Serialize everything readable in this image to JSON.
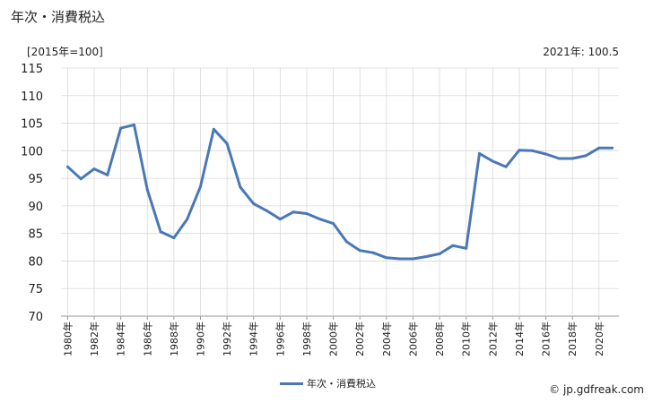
{
  "chart_data": {
    "type": "line",
    "title": "年次・消費税込",
    "unit_label": "[2015年=100]",
    "latest_note": "2021年: 100.5",
    "ylim": [
      70,
      115
    ],
    "yticks": [
      70,
      75,
      80,
      85,
      90,
      95,
      100,
      105,
      110,
      115
    ],
    "xlim": [
      1980,
      2021
    ],
    "xtick_labels": [
      "1980年",
      "1982年",
      "1984年",
      "1986年",
      "1988年",
      "1990年",
      "1992年",
      "1994年",
      "1996年",
      "1998年",
      "2000年",
      "2002年",
      "2004年",
      "2006年",
      "2008年",
      "2010年",
      "2012年",
      "2014年",
      "2016年",
      "2018年",
      "2020年"
    ],
    "xtick_years": [
      1980,
      1982,
      1984,
      1986,
      1988,
      1990,
      1992,
      1994,
      1996,
      1998,
      2000,
      2002,
      2004,
      2006,
      2008,
      2010,
      2012,
      2014,
      2016,
      2018,
      2020
    ],
    "grid": true,
    "legend_position": "bottom",
    "series": [
      {
        "name": "年次・消費税込",
        "color": "#4a78b6",
        "x": [
          1980,
          1981,
          1982,
          1983,
          1984,
          1985,
          1986,
          1987,
          1988,
          1989,
          1990,
          1991,
          1992,
          1993,
          1994,
          1995,
          1996,
          1997,
          1998,
          1999,
          2000,
          2001,
          2002,
          2003,
          2004,
          2005,
          2006,
          2007,
          2008,
          2009,
          2010,
          2011,
          2012,
          2013,
          2014,
          2015,
          2016,
          2017,
          2018,
          2019,
          2020,
          2021
        ],
        "values": [
          97.1,
          94.9,
          96.7,
          95.6,
          104.1,
          104.7,
          92.9,
          85.3,
          84.2,
          87.6,
          93.5,
          103.9,
          101.3,
          93.4,
          90.4,
          89.1,
          87.6,
          88.9,
          88.6,
          87.6,
          86.8,
          83.5,
          81.9,
          81.5,
          80.6,
          80.4,
          80.4,
          80.8,
          81.3,
          82.8,
          82.3,
          99.5,
          98.1,
          97.1,
          100.1,
          100.0,
          99.4,
          98.6,
          98.6,
          99.1,
          100.5,
          100.5
        ]
      }
    ]
  },
  "credit": "© jp.gdfreak.com"
}
